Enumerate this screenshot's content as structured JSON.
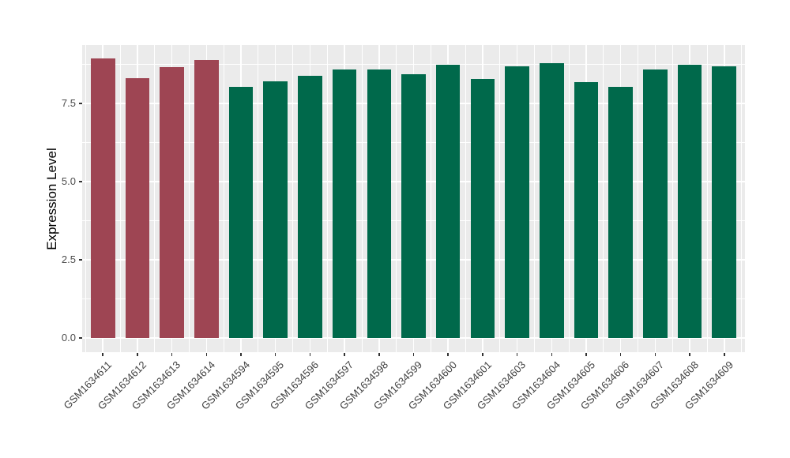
{
  "chart_data": {
    "type": "bar",
    "title": "",
    "xlabel": "",
    "ylabel": "Expression Level",
    "categories": [
      "GSM1634611",
      "GSM1634612",
      "GSM1634613",
      "GSM1634614",
      "GSM1634594",
      "GSM1634595",
      "GSM1634596",
      "GSM1634597",
      "GSM1634598",
      "GSM1634599",
      "GSM1634600",
      "GSM1634601",
      "GSM1634603",
      "GSM1634604",
      "GSM1634605",
      "GSM1634606",
      "GSM1634607",
      "GSM1634608",
      "GSM1634609"
    ],
    "values": [
      8.93,
      8.3,
      8.66,
      8.9,
      8.02,
      8.2,
      8.38,
      8.6,
      8.6,
      8.44,
      8.73,
      8.29,
      8.69,
      8.8,
      8.19,
      8.02,
      8.6,
      8.73,
      8.68
    ],
    "bar_colors": [
      "#9e4553",
      "#9e4553",
      "#9e4553",
      "#9e4553",
      "#00694b",
      "#00694b",
      "#00694b",
      "#00694b",
      "#00694b",
      "#00694b",
      "#00694b",
      "#00694b",
      "#00694b",
      "#00694b",
      "#00694b",
      "#00694b",
      "#00694b",
      "#00694b",
      "#00694b"
    ],
    "group_colors": {
      "highlight": "#9e4553",
      "normal": "#00694b"
    },
    "y_tick_labels": [
      "0.0",
      "2.5",
      "5.0",
      "7.5"
    ],
    "y_tick_values": [
      0,
      2.5,
      5.0,
      7.5
    ],
    "y_minor_values": [
      1.25,
      3.75,
      6.25,
      8.75
    ],
    "ylim": [
      -0.45,
      9.37
    ],
    "bar_width_fraction": 0.7,
    "grid": "on",
    "legend_position": "none",
    "panel_bg": "#ebebeb",
    "grid_color": "#ffffff",
    "tick_mark_color": "#333333",
    "axis_text_color": "#4d4d4d",
    "axis_title_color": "#000000",
    "background": "#ffffff"
  }
}
